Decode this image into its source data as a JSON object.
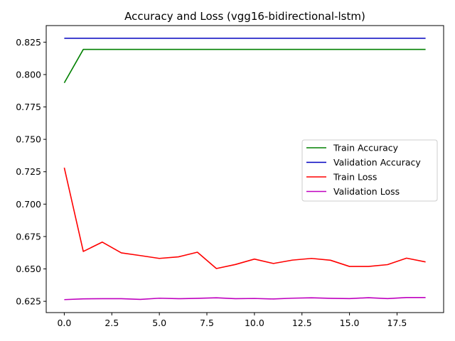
{
  "chart_data": {
    "type": "line",
    "title": "Accuracy and Loss (vgg16-bidirectional-lstm)",
    "xlabel": "",
    "ylabel": "",
    "xlim": [
      -0.95,
      19.95
    ],
    "ylim": [
      0.6163,
      0.8378
    ],
    "xticks": [
      0.0,
      2.5,
      5.0,
      7.5,
      10.0,
      12.5,
      15.0,
      17.5
    ],
    "xtick_labels": [
      "0.0",
      "2.5",
      "5.0",
      "7.5",
      "10.0",
      "12.5",
      "15.0",
      "17.5"
    ],
    "yticks": [
      0.625,
      0.65,
      0.675,
      0.7,
      0.725,
      0.75,
      0.775,
      0.8,
      0.825
    ],
    "ytick_labels": [
      "0.625",
      "0.650",
      "0.675",
      "0.700",
      "0.725",
      "0.750",
      "0.775",
      "0.800",
      "0.825"
    ],
    "grid": false,
    "legend_position": "center-right",
    "x": [
      0,
      1,
      2,
      3,
      4,
      5,
      6,
      7,
      8,
      9,
      10,
      11,
      12,
      13,
      14,
      15,
      16,
      17,
      18,
      19
    ],
    "series": [
      {
        "name": "Train Accuracy",
        "color": "#008000",
        "values": [
          0.7936,
          0.8194,
          0.8194,
          0.8194,
          0.8194,
          0.8194,
          0.8194,
          0.8194,
          0.8194,
          0.8194,
          0.8194,
          0.8194,
          0.8194,
          0.8194,
          0.8194,
          0.8194,
          0.8194,
          0.8194,
          0.8194,
          0.8194
        ]
      },
      {
        "name": "Validation Accuracy",
        "color": "#0000bf",
        "values": [
          0.828,
          0.828,
          0.828,
          0.828,
          0.828,
          0.828,
          0.828,
          0.828,
          0.828,
          0.828,
          0.828,
          0.828,
          0.828,
          0.828,
          0.828,
          0.828,
          0.828,
          0.828,
          0.828,
          0.828
        ]
      },
      {
        "name": "Train Loss",
        "color": "#ff0000",
        "values": [
          0.7281,
          0.6635,
          0.6707,
          0.6624,
          0.6603,
          0.6581,
          0.6593,
          0.6629,
          0.6503,
          0.6534,
          0.6576,
          0.6542,
          0.6568,
          0.6581,
          0.6567,
          0.6519,
          0.6519,
          0.6533,
          0.6583,
          0.6554
        ]
      },
      {
        "name": "Validation Loss",
        "color": "#bf00bf",
        "values": [
          0.6263,
          0.6269,
          0.627,
          0.627,
          0.6265,
          0.6274,
          0.627,
          0.6273,
          0.6277,
          0.627,
          0.6272,
          0.6268,
          0.6274,
          0.6277,
          0.6273,
          0.6271,
          0.6278,
          0.6271,
          0.6279,
          0.6279
        ]
      }
    ]
  }
}
